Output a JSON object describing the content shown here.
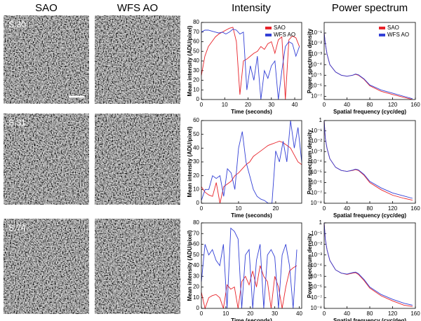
{
  "panels": {
    "headers": [
      "SAO",
      "WFS AO",
      "Intensity",
      "Power spectrum"
    ],
    "rows": [
      "S.30",
      "S.31",
      "S.74"
    ]
  },
  "chart_data": [
    {
      "type": "line",
      "x_label": "Time (seconds)",
      "y_label": "Mean intensity (ADU/pixel)",
      "legend": "upper right",
      "x": [
        0,
        1.5,
        3,
        4.5,
        6,
        7.5,
        9,
        10.5,
        12,
        13.5,
        15,
        16.5,
        18,
        19.5,
        21,
        22.5,
        24,
        25.5,
        27,
        28.5,
        30,
        31.5,
        33,
        34.5,
        36,
        37.5,
        39,
        40.5,
        42
      ],
      "series": [
        {
          "name": "SAO",
          "color": "#e8232a",
          "values": [
            25,
            45,
            55,
            60,
            65,
            68,
            70,
            72,
            74,
            75,
            60,
            5,
            40,
            42,
            45,
            48,
            50,
            55,
            52,
            58,
            60,
            48,
            62,
            65,
            0,
            62,
            66,
            64,
            55
          ]
        },
        {
          "name": "WFS AO",
          "color": "#3340d6",
          "values": [
            70,
            72,
            72,
            71,
            70,
            69,
            70,
            68,
            70,
            73,
            72,
            68,
            70,
            10,
            35,
            20,
            45,
            0,
            30,
            22,
            35,
            40,
            0,
            30,
            55,
            60,
            58,
            45,
            55
          ]
        }
      ],
      "xlim": [
        0,
        43
      ],
      "xticks": [
        0,
        10,
        20,
        30,
        40
      ],
      "ylim": [
        0,
        80
      ],
      "yticks": [
        0,
        10,
        20,
        30,
        40,
        50,
        60,
        70,
        80
      ]
    },
    {
      "type": "line",
      "x_label": "Time (seconds)",
      "y_label": "Mean intensity (ADU/pixel)",
      "x": [
        0,
        1,
        2,
        3,
        4,
        5,
        6,
        7,
        8,
        9,
        10,
        11,
        12,
        13,
        14,
        15,
        16,
        17,
        18,
        19,
        20,
        21,
        22,
        23,
        24,
        25,
        26,
        27
      ],
      "series": [
        {
          "color": "#e8232a",
          "values": [
            12,
            8,
            6,
            5,
            15,
            0,
            12,
            14,
            16,
            20,
            22,
            25,
            28,
            30,
            34,
            36,
            38,
            40,
            42,
            43,
            44,
            45,
            44,
            42,
            40,
            35,
            30,
            28
          ]
        },
        {
          "color": "#3340d6",
          "values": [
            2,
            10,
            10,
            20,
            18,
            20,
            5,
            25,
            22,
            10,
            40,
            52,
            30,
            20,
            10,
            5,
            3,
            2,
            0,
            0,
            38,
            30,
            45,
            30,
            60,
            40,
            55,
            30
          ]
        }
      ],
      "xlim": [
        0,
        27
      ],
      "xticks": [
        0,
        10,
        20
      ],
      "ylim": [
        0,
        60
      ],
      "yticks": [
        0,
        10,
        20,
        30,
        40,
        50,
        60
      ]
    },
    {
      "type": "line",
      "x_label": "Time (seconds)",
      "y_label": "Mean intensity (ADU/pixel)",
      "x": [
        0,
        1.5,
        3,
        4.5,
        6,
        7.5,
        9,
        10.5,
        12,
        13.5,
        15,
        16.5,
        18,
        19.5,
        21,
        22.5,
        24,
        25.5,
        27,
        28.5,
        30,
        31.5,
        33,
        34.5,
        36,
        37.5,
        39
      ],
      "series": [
        {
          "color": "#e8232a",
          "values": [
            15,
            0,
            10,
            12,
            13,
            10,
            0,
            22,
            18,
            20,
            0,
            25,
            30,
            22,
            35,
            20,
            40,
            30,
            25,
            0,
            30,
            20,
            0,
            20,
            35,
            38,
            40
          ]
        },
        {
          "color": "#3340d6",
          "values": [
            25,
            60,
            50,
            55,
            45,
            40,
            60,
            0,
            75,
            72,
            65,
            0,
            50,
            55,
            0,
            45,
            60,
            0,
            50,
            55,
            48,
            0,
            50,
            60,
            40,
            0,
            55
          ]
        }
      ],
      "xlim": [
        0,
        41
      ],
      "xticks": [
        0,
        10,
        20,
        30,
        40
      ],
      "ylim": [
        0,
        80
      ],
      "yticks": [
        0,
        10,
        20,
        30,
        40,
        50,
        60,
        70,
        80
      ]
    },
    {
      "type": "line",
      "x_label": "Spatial frequency (cyc/deg)",
      "y_label": "Power spectrum density",
      "legend": "upper right",
      "log_y": true,
      "x": [
        0,
        2,
        5,
        10,
        20,
        30,
        40,
        50,
        55,
        60,
        70,
        80,
        100,
        120,
        140,
        155
      ],
      "series": [
        {
          "name": "SAO",
          "color": "#e8232a",
          "values": [
            0.1,
            0.01,
            0.001,
            0.0001,
            2e-05,
            1e-05,
            8e-06,
            1e-05,
            1.2e-05,
            1e-05,
            4e-06,
            1e-06,
            3e-07,
            1.5e-07,
            8e-08,
            5e-08
          ]
        },
        {
          "name": "WFS AO",
          "color": "#3340d6",
          "values": [
            0.1,
            0.01,
            0.001,
            0.0001,
            2e-05,
            1e-05,
            8e-06,
            1e-05,
            1.3e-05,
            1.1e-05,
            4.5e-06,
            1.2e-06,
            4e-07,
            2e-07,
            1e-07,
            6e-08
          ]
        }
      ],
      "xlim": [
        0,
        160
      ],
      "xticks": [
        0,
        40,
        80,
        120,
        160
      ],
      "ylim": [
        5e-08,
        1
      ],
      "yticks": [
        {
          "value": 0.1,
          "label": "10⁻¹"
        },
        {
          "value": 0.01,
          "label": "10⁻²"
        },
        {
          "value": 0.001,
          "label": "10⁻³"
        },
        {
          "value": 0.0001,
          "label": "10⁻⁴"
        },
        {
          "value": 1e-05,
          "label": "10⁻⁵"
        },
        {
          "value": 1e-06,
          "label": "10⁻⁶"
        },
        {
          "value": 1e-07,
          "label": "10⁻⁷"
        }
      ]
    },
    {
      "type": "line",
      "x_label": "Spatial frequency (cyc/deg)",
      "y_label": "Power spectrum density",
      "log_y": true,
      "x": [
        0,
        2,
        5,
        10,
        20,
        30,
        40,
        50,
        55,
        60,
        70,
        80,
        100,
        120,
        140,
        155
      ],
      "series": [
        {
          "color": "#e8232a",
          "values": [
            1,
            0.02,
            0.002,
            0.0002,
            3e-05,
            1.5e-05,
            1.2e-05,
            1.5e-05,
            1.8e-05,
            1.5e-05,
            5e-06,
            1e-06,
            2e-07,
            6e-08,
            3e-08,
            2e-08
          ]
        },
        {
          "color": "#3340d6",
          "values": [
            1,
            0.02,
            0.002,
            0.0002,
            3e-05,
            1.5e-05,
            1.2e-05,
            1.6e-05,
            2e-05,
            1.7e-05,
            6e-06,
            1.3e-06,
            3e-07,
            1e-07,
            5e-08,
            3e-08
          ]
        }
      ],
      "xlim": [
        0,
        160
      ],
      "xticks": [
        0,
        40,
        80,
        120,
        160
      ],
      "ylim": [
        1e-08,
        1
      ],
      "yticks": [
        1,
        {
          "value": 0.1,
          "label": "10⁻¹"
        },
        {
          "value": 0.01,
          "label": "10⁻²"
        },
        {
          "value": 0.001,
          "label": "10⁻³"
        },
        {
          "value": 0.0001,
          "label": "10⁻⁴"
        },
        {
          "value": 1e-05,
          "label": "10⁻⁵"
        },
        {
          "value": 1e-06,
          "label": "10⁻⁶"
        },
        {
          "value": 1e-07,
          "label": "10⁻⁷"
        },
        {
          "value": 1e-08,
          "label": "10⁻⁸"
        }
      ]
    },
    {
      "type": "line",
      "x_label": "Spatial frequency (cyc/deg)",
      "y_label": "Power spectrum density",
      "log_y": true,
      "x": [
        0,
        2,
        5,
        10,
        20,
        30,
        40,
        50,
        55,
        60,
        70,
        80,
        100,
        120,
        140,
        155
      ],
      "series": [
        {
          "color": "#e8232a",
          "values": [
            1,
            0.03,
            0.003,
            0.0003,
            4e-05,
            2e-05,
            1.5e-05,
            2e-05,
            2.2e-05,
            1.5e-05,
            4e-06,
            8e-07,
            1.5e-07,
            5e-08,
            2e-08,
            1.5e-08
          ]
        },
        {
          "color": "#3340d6",
          "values": [
            1,
            0.03,
            0.003,
            0.0003,
            4e-05,
            2e-05,
            1.6e-05,
            2.2e-05,
            2.5e-05,
            1.8e-05,
            5e-06,
            1e-06,
            2e-07,
            7e-08,
            3e-08,
            2e-08
          ]
        }
      ],
      "xlim": [
        0,
        160
      ],
      "xticks": [
        0,
        40,
        80,
        120,
        160
      ],
      "ylim": [
        1e-08,
        1
      ],
      "yticks": [
        1,
        {
          "value": 0.1,
          "label": "10⁻¹"
        },
        {
          "value": 0.01,
          "label": "10⁻²"
        },
        {
          "value": 0.001,
          "label": "10⁻³"
        },
        {
          "value": 0.0001,
          "label": "10⁻⁴"
        },
        {
          "value": 1e-05,
          "label": "10⁻⁵"
        },
        {
          "value": 1e-06,
          "label": "10⁻⁶"
        },
        {
          "value": 1e-07,
          "label": "10⁻⁷"
        },
        {
          "value": 1e-08,
          "label": "10⁻⁸"
        }
      ]
    }
  ]
}
